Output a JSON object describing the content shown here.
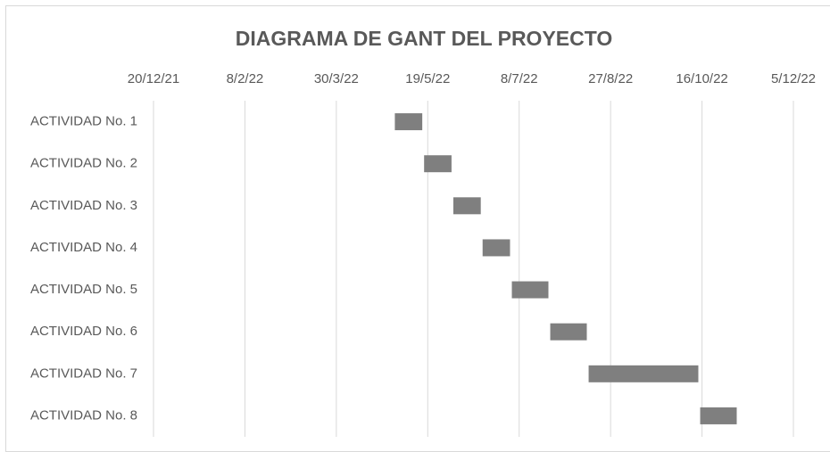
{
  "chart_data": {
    "type": "gantt",
    "title": "DIAGRAMA DE GANT DEL PROYECTO",
    "categories": [
      "ACTIVIDAD No. 1",
      "ACTIVIDAD No. 2",
      "ACTIVIDAD No. 3",
      "ACTIVIDAD No. 4",
      "ACTIVIDAD No. 5",
      "ACTIVIDAD No. 6",
      "ACTIVIDAD No. 7",
      "ACTIVIDAD No. 8"
    ],
    "starts": [
      44682,
      44698,
      44714,
      44730,
      44746,
      44767,
      44788,
      44849
    ],
    "durations": [
      15,
      15,
      15,
      15,
      20,
      20,
      60,
      20
    ],
    "color": "#7f7f7f",
    "xlim": [
      44550,
      44900
    ],
    "xticks": [
      {
        "value": 44550,
        "label": "20/12/21"
      },
      {
        "value": 44600,
        "label": "8/2/22"
      },
      {
        "value": 44650,
        "label": "30/3/22"
      },
      {
        "value": 44700,
        "label": "19/5/22"
      },
      {
        "value": 44750,
        "label": "8/7/22"
      },
      {
        "value": 44800,
        "label": "27/8/22"
      },
      {
        "value": 44850,
        "label": "16/10/22"
      },
      {
        "value": 44900,
        "label": "5/12/22"
      }
    ],
    "grid": true
  }
}
